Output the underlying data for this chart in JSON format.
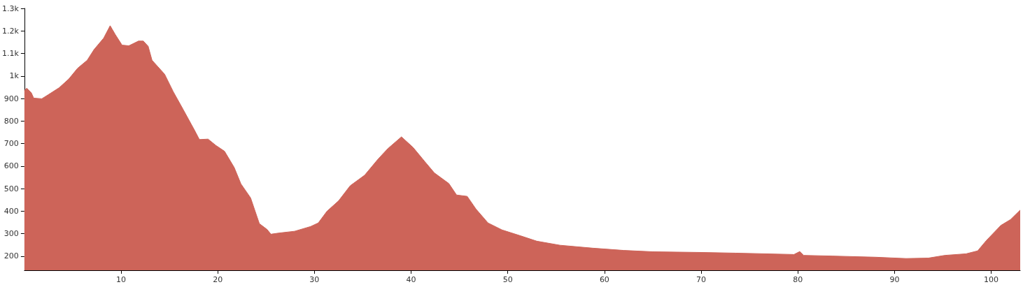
{
  "chart_data": {
    "type": "area",
    "color": "#cd6459",
    "x": [
      0,
      0.24,
      0.72,
      0.96,
      1.8,
      2.4,
      3.6,
      4.6,
      5.5,
      6.5,
      7.2,
      8.2,
      8.87,
      9.4,
      10.1,
      10.8,
      11.8,
      12.3,
      12.8,
      13.2,
      14.5,
      15.4,
      16.4,
      17.6,
      18.1,
      19.0,
      19.8,
      20.7,
      21.7,
      22.4,
      23.4,
      24.3,
      25.1,
      25.5,
      26.3,
      27.95,
      29.6,
      30.4,
      31.3,
      32.5,
      33.7,
      35.2,
      36.6,
      37.6,
      39.0,
      40.2,
      41.4,
      42.4,
      43.9,
      44.7,
      45.8,
      46.7,
      47.95,
      49.4,
      51.3,
      53.0,
      55.4,
      58.8,
      62,
      65,
      70,
      73.6,
      79.6,
      80.2,
      80.6,
      83.6,
      88.0,
      91.2,
      93.5,
      95.2,
      97.4,
      98.6,
      99.5,
      101.0,
      102.0,
      103.0
    ],
    "values": [
      935,
      946,
      925,
      902,
      899,
      915,
      948,
      987,
      1034,
      1070,
      1117,
      1168,
      1223,
      1184,
      1137,
      1134,
      1155,
      1155,
      1132,
      1070,
      1008,
      930,
      853,
      759,
      718,
      720,
      692,
      666,
      594,
      521,
      459,
      345,
      319,
      298,
      303,
      311,
      332,
      348,
      400,
      446,
      513,
      560,
      632,
      678,
      730,
      683,
      621,
      570,
      523,
      472,
      466,
      410,
      348,
      317,
      291,
      267,
      249,
      236,
      226,
      220,
      217,
      214,
      208,
      221,
      204,
      201,
      196,
      190,
      192,
      204,
      211,
      224,
      270,
      337,
      363,
      405
    ],
    "xlim": [
      0,
      103
    ],
    "xticks": [
      10,
      20,
      30,
      40,
      50,
      60,
      70,
      80,
      90,
      100
    ],
    "ylim": [
      138,
      1300
    ],
    "yticks": [
      200,
      300,
      400,
      500,
      600,
      700,
      800,
      900,
      {
        "value": 1000,
        "label": "1k"
      },
      {
        "value": 1100,
        "label": "1.1k"
      },
      {
        "value": 1200,
        "label": "1.2k"
      },
      {
        "value": 1300,
        "label": "1.3k"
      }
    ],
    "grid": false,
    "marker": "none"
  }
}
